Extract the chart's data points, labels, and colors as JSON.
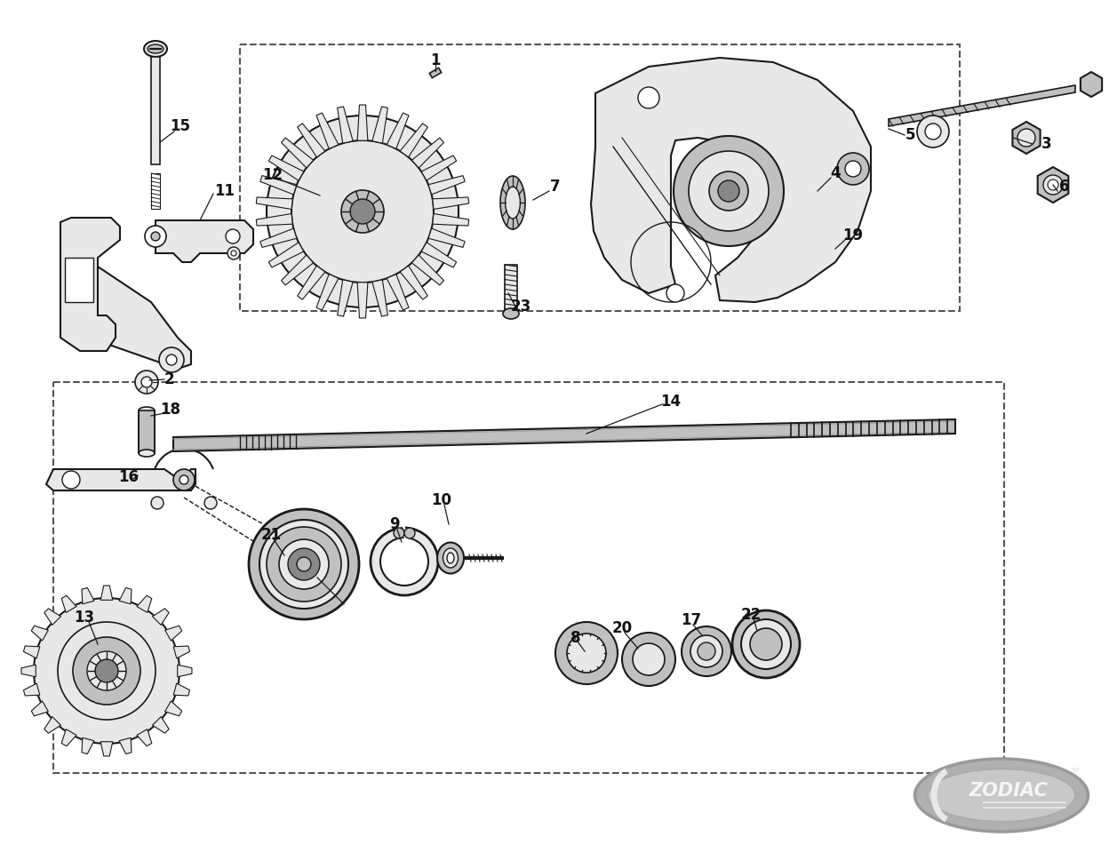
{
  "background_color": "#ffffff",
  "line_color": "#1a1a1a",
  "gray_light": "#e8e8e8",
  "gray_mid": "#c0c0c0",
  "gray_dark": "#888888",
  "label_fontsize": 12,
  "label_color": "#111111"
}
